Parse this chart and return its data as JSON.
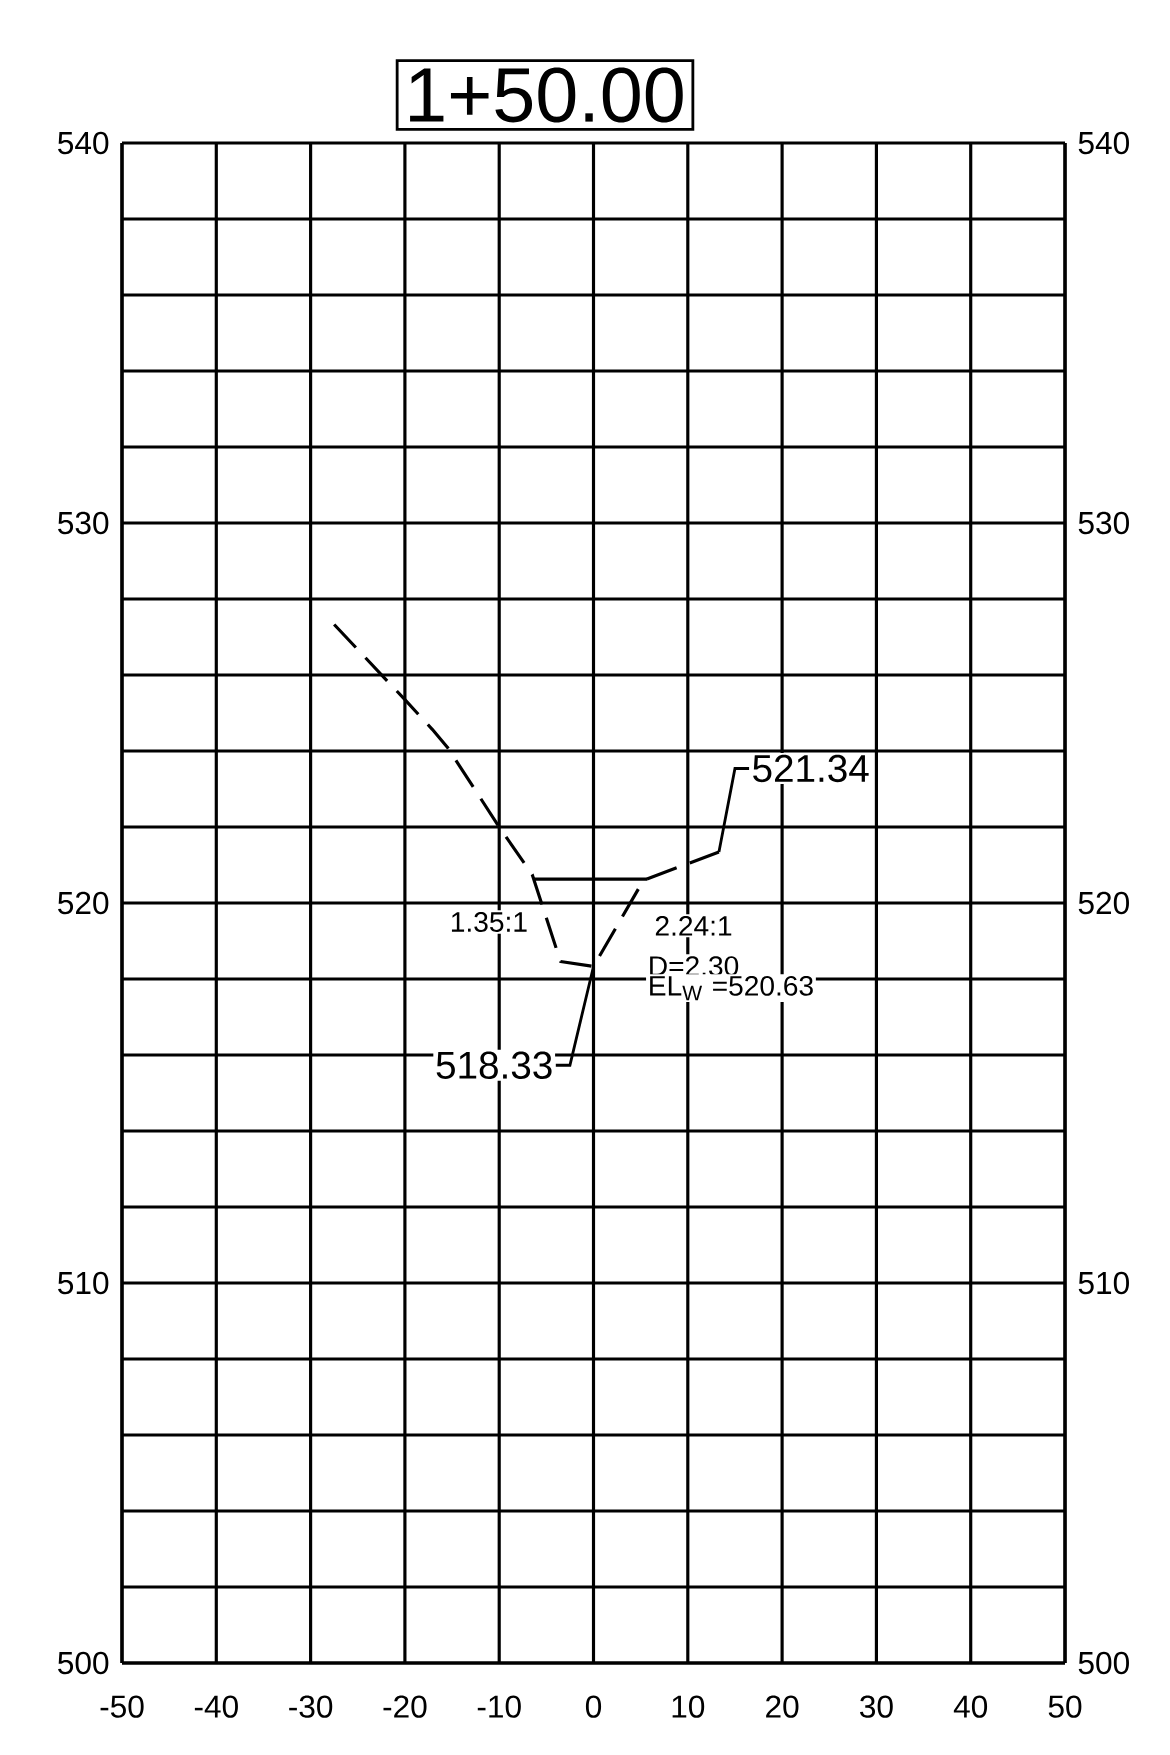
{
  "chart_data": {
    "type": "line",
    "title": "1+50.00",
    "series": [
      {
        "color": "#000000",
        "line_style": "dashed",
        "x": [
          -27.5,
          -20,
          -17.1,
          -15.5,
          -10,
          -6.5,
          -3.5,
          0,
          5.3,
          13.3
        ],
        "values": [
          527.33,
          525.35,
          524.57,
          524.1,
          522.0,
          520.75,
          518.46,
          518.33,
          520.6,
          521.34
        ]
      },
      {
        "color": "#000000",
        "line_style": "solid",
        "x": [
          -6.3,
          5.7
        ],
        "values": [
          520.63,
          520.63
        ]
      }
    ],
    "xlim": [
      -50,
      50
    ],
    "xticks": [
      -50,
      -40,
      -30,
      -20,
      -10,
      0,
      10,
      20,
      30,
      40,
      50
    ],
    "ylim": [
      500,
      540
    ],
    "yticks": [
      500,
      {
        "value": 502,
        "label": null
      },
      {
        "value": 504,
        "label": null
      },
      {
        "value": 506,
        "label": null
      },
      {
        "value": 508,
        "label": null
      },
      510,
      {
        "value": 512,
        "label": null
      },
      {
        "value": 514,
        "label": null
      },
      {
        "value": 516,
        "label": null
      },
      {
        "value": 518,
        "label": null
      },
      520,
      {
        "value": 522,
        "label": null
      },
      {
        "value": 524,
        "label": null
      },
      {
        "value": 526,
        "label": null
      },
      {
        "value": 528,
        "label": null
      },
      530,
      {
        "value": 532,
        "label": null
      },
      {
        "value": 534,
        "label": null
      },
      {
        "value": 536,
        "label": null
      },
      {
        "value": 538,
        "label": null
      },
      540
    ],
    "y2lim": [
      500,
      540
    ],
    "y2ticks": [
      500,
      510,
      520,
      530,
      540
    ],
    "grid": true,
    "marker": "none",
    "annotations": [
      {
        "text": "521.34",
        "x": 13.3,
        "y": 521.34
      },
      {
        "text": "518.33",
        "x": 0,
        "y": 518.33
      },
      "1.35:1",
      "2.24:1",
      "D=2.30",
      "EL$_{W}$ =520.63"
    ]
  }
}
